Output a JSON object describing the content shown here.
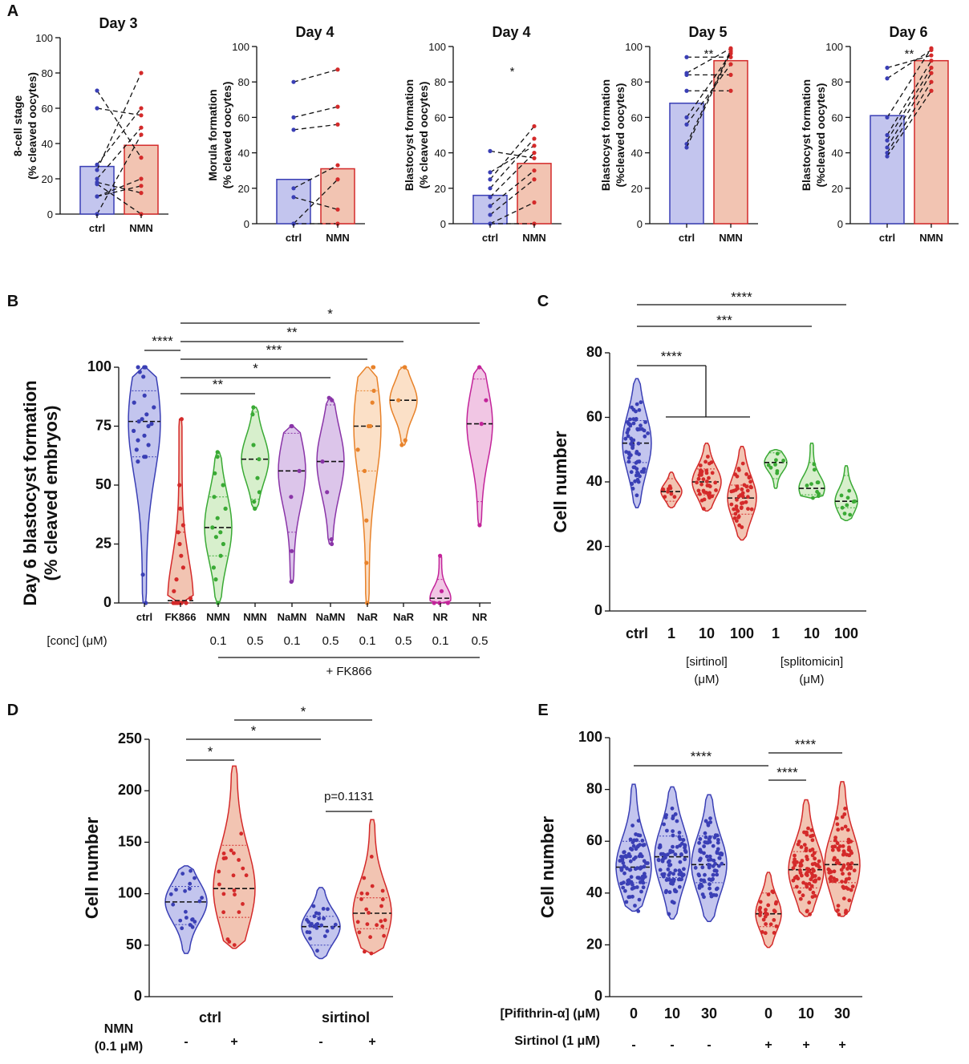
{
  "panel_labels": [
    "A",
    "B",
    "C",
    "D",
    "E"
  ],
  "colors": {
    "blue": "#3a3fb5",
    "blue_fill": "#c3c5ee",
    "red": "#d42a2a",
    "red_fill": "#f2c4b2",
    "green": "#3aaa35",
    "green_fill": "#d7efcc",
    "purple": "#8a35a8",
    "purple_fill": "#dcc5ea",
    "orange": "#e8822a",
    "orange_fill": "#fbe0c7",
    "magenta": "#c3249a",
    "magenta_fill": "#f1c6e4"
  },
  "chart_data": [
    {
      "id": "A1",
      "type": "bar",
      "title": "Day 3",
      "ylabel": "8-cell stage\n(% cleaved oocytes)",
      "categories": [
        "ctrl",
        "NMN"
      ],
      "values": [
        27,
        39
      ],
      "ylim": [
        0,
        100
      ],
      "yticks": [
        0,
        20,
        40,
        60,
        80,
        100
      ],
      "pairs": [
        [
          70,
          32
        ],
        [
          60,
          56
        ],
        [
          28,
          60
        ],
        [
          25,
          80
        ],
        [
          20,
          49
        ],
        [
          18,
          12
        ],
        [
          17,
          0
        ],
        [
          10,
          16
        ],
        [
          10,
          20
        ],
        [
          0,
          45
        ]
      ]
    },
    {
      "id": "A2",
      "type": "bar",
      "title": "Day 4",
      "ylabel": "Morula formation\n(% cleaved oocytes)",
      "categories": [
        "ctrl",
        "NMN"
      ],
      "values": [
        25,
        31
      ],
      "ylim": [
        0,
        100
      ],
      "yticks": [
        0,
        20,
        40,
        60,
        80,
        100
      ],
      "pairs": [
        [
          80,
          87
        ],
        [
          60,
          66
        ],
        [
          53,
          56
        ],
        [
          20,
          33
        ],
        [
          15,
          8
        ],
        [
          0,
          25
        ],
        [
          0,
          0
        ]
      ]
    },
    {
      "id": "A3",
      "type": "bar",
      "title": "Day 4",
      "ylabel": "Blastocyst formation\n(% cleaved oocytes)",
      "categories": [
        "ctrl",
        "NMN"
      ],
      "values": [
        16,
        34
      ],
      "ylim": [
        0,
        100
      ],
      "yticks": [
        0,
        20,
        40,
        60,
        80,
        100
      ],
      "annotations": [
        "*"
      ],
      "pairs": [
        [
          41,
          37
        ],
        [
          29,
          44
        ],
        [
          25,
          55
        ],
        [
          20,
          48
        ],
        [
          15,
          40
        ],
        [
          10,
          30
        ],
        [
          5,
          25
        ],
        [
          0,
          12
        ],
        [
          0,
          0
        ]
      ]
    },
    {
      "id": "A4",
      "type": "bar",
      "title": "Day 5",
      "ylabel": "Blastocyst formation\n(%cleaved oocytes)",
      "categories": [
        "ctrl",
        "NMN"
      ],
      "values": [
        68,
        92
      ],
      "ylim": [
        0,
        100
      ],
      "yticks": [
        0,
        20,
        40,
        60,
        80,
        100
      ],
      "annotations": [
        "**"
      ],
      "pairs": [
        [
          94,
          94
        ],
        [
          85,
          99
        ],
        [
          84,
          84
        ],
        [
          75,
          75
        ],
        [
          60,
          96
        ],
        [
          56,
          90
        ],
        [
          45,
          98
        ],
        [
          43,
          97
        ]
      ]
    },
    {
      "id": "A5",
      "type": "bar",
      "title": "Day 6",
      "ylabel": "Blastocyst formation\n(%cleaved oocytes)",
      "categories": [
        "ctrl",
        "NMN"
      ],
      "values": [
        61,
        92
      ],
      "ylim": [
        0,
        100
      ],
      "yticks": [
        0,
        20,
        40,
        60,
        80,
        100
      ],
      "annotations": [
        "**"
      ],
      "pairs": [
        [
          88,
          95
        ],
        [
          82,
          98
        ],
        [
          60,
          99
        ],
        [
          50,
          92
        ],
        [
          47,
          88
        ],
        [
          43,
          85
        ],
        [
          40,
          80
        ],
        [
          38,
          75
        ]
      ]
    },
    {
      "id": "B",
      "type": "violin",
      "ylabel": "Day 6 blastocyst formation\n(% cleaved embryos)",
      "ylim": [
        0,
        100
      ],
      "yticks": [
        0,
        25,
        50,
        75,
        100
      ],
      "categories": [
        "ctrl",
        "FK866",
        "NMN",
        "NMN",
        "NaMN",
        "NaMN",
        "NaR",
        "NaR",
        "NR",
        "NR"
      ],
      "conc_label": "[conc] (μM)",
      "concs": [
        "",
        "",
        "0.1",
        "0.5",
        "0.1",
        "0.5",
        "0.1",
        "0.5",
        "0.1",
        "0.5"
      ],
      "fk866_label": "+ FK866",
      "series": [
        {
          "name": "ctrl",
          "color": "blue",
          "min": 0,
          "max": 100,
          "median": 77,
          "q1": 62,
          "q3": 90,
          "points": [
            100,
            100,
            100,
            98,
            96,
            88,
            85,
            83,
            80,
            78,
            77,
            76,
            75,
            73,
            71,
            69,
            67,
            65,
            62,
            62,
            60,
            12,
            0
          ]
        },
        {
          "name": "FK866",
          "color": "red",
          "min": 0,
          "max": 78,
          "median": 1,
          "q1": 0,
          "q3": 30,
          "points": [
            78,
            50,
            40,
            33,
            30,
            25,
            20,
            15,
            10,
            5,
            2,
            0,
            0,
            0,
            0,
            0,
            0
          ]
        },
        {
          "name": "NMN 0.1",
          "color": "green",
          "min": 0,
          "max": 64,
          "median": 32,
          "q1": 20,
          "q3": 45,
          "points": [
            64,
            62,
            55,
            50,
            45,
            40,
            36,
            32,
            30,
            28,
            25,
            20,
            15,
            10,
            0
          ]
        },
        {
          "name": "NMN 0.5",
          "color": "green",
          "min": 40,
          "max": 83,
          "median": 61,
          "q1": 44,
          "q3": 81,
          "points": [
            83,
            80,
            67,
            61,
            53,
            47,
            43,
            40
          ]
        },
        {
          "name": "NaMN 0.1",
          "color": "purple",
          "min": 9,
          "max": 75,
          "median": 56,
          "q1": 30,
          "q3": 72,
          "points": [
            75,
            75,
            56,
            45,
            22,
            9
          ]
        },
        {
          "name": "NaMN 0.5",
          "color": "purple",
          "min": 25,
          "max": 87,
          "median": 60,
          "q1": 27,
          "q3": 84,
          "points": [
            87,
            86,
            60,
            47,
            27,
            25
          ]
        },
        {
          "name": "NaR 0.1",
          "color": "orange",
          "min": 0,
          "max": 100,
          "median": 75,
          "q1": 56,
          "q3": 90,
          "points": [
            100,
            100,
            90,
            85,
            75,
            75,
            65,
            56,
            35,
            17,
            0
          ]
        },
        {
          "name": "NaR 0.5",
          "color": "orange",
          "min": 67,
          "max": 100,
          "median": 86,
          "q1": 68,
          "q3": 100,
          "points": [
            100,
            100,
            86,
            69,
            67
          ]
        },
        {
          "name": "NR 0.1",
          "color": "magenta",
          "min": 0,
          "max": 20,
          "median": 2,
          "q1": 0,
          "q3": 10,
          "points": [
            20,
            5,
            0,
            0,
            0
          ]
        },
        {
          "name": "NR 0.5",
          "color": "magenta",
          "min": 33,
          "max": 100,
          "median": 76,
          "q1": 43,
          "q3": 95,
          "points": [
            100,
            86,
            76,
            33
          ]
        }
      ],
      "annotations": [
        {
          "from": 0,
          "to": 1,
          "label": "****"
        },
        {
          "from": 1,
          "to": 3,
          "label": "**"
        },
        {
          "from": 1,
          "to": 5,
          "label": "*"
        },
        {
          "from": 1,
          "to": 6,
          "label": "***"
        },
        {
          "from": 1,
          "to": 7,
          "label": "**"
        },
        {
          "from": 1,
          "to": 9,
          "label": "*"
        }
      ]
    },
    {
      "id": "C",
      "type": "violin",
      "ylabel": "Cell number",
      "ylim": [
        0,
        80
      ],
      "yticks": [
        0,
        20,
        40,
        60,
        80
      ],
      "categories": [
        "ctrl",
        "1",
        "10",
        "100",
        "1",
        "10",
        "100"
      ],
      "group_labels": [
        "[sirtinol]\n(μM)",
        "[splitomicin]\n(μM)"
      ],
      "series": [
        {
          "name": "ctrl",
          "color": "blue",
          "min": 32,
          "max": 72,
          "median": 52,
          "q1": 46,
          "q3": 59
        },
        {
          "name": "sirtinol 1",
          "color": "red",
          "min": 32,
          "max": 43,
          "median": 37,
          "q1": 34,
          "q3": 41
        },
        {
          "name": "sirtinol 10",
          "color": "red",
          "min": 31,
          "max": 52,
          "median": 40,
          "q1": 36,
          "q3": 44
        },
        {
          "name": "sirtinol 100",
          "color": "red",
          "min": 22,
          "max": 51,
          "median": 35,
          "q1": 30,
          "q3": 39
        },
        {
          "name": "splitomicin 1",
          "color": "green",
          "min": 38,
          "max": 50,
          "median": 46,
          "q1": 41,
          "q3": 49
        },
        {
          "name": "splitomicin 10",
          "color": "green",
          "min": 35,
          "max": 52,
          "median": 38,
          "q1": 36,
          "q3": 46
        },
        {
          "name": "splitomicin 100",
          "color": "green",
          "min": 28,
          "max": 45,
          "median": 34,
          "q1": 32,
          "q3": 42
        }
      ],
      "annotations": [
        "****",
        "***",
        "****"
      ]
    },
    {
      "id": "D",
      "type": "violin",
      "ylabel": "Cell number",
      "ylim": [
        0,
        250
      ],
      "yticks": [
        0,
        50,
        100,
        150,
        200,
        250
      ],
      "group_labels": [
        "ctrl",
        "sirtinol"
      ],
      "nmn_label": "NMN\n(0.1 μM)",
      "nmn_signs": [
        "-",
        "+",
        "-",
        "+"
      ],
      "series": [
        {
          "name": "ctrl -",
          "color": "blue",
          "min": 42,
          "max": 127,
          "median": 92,
          "q1": 70,
          "q3": 107
        },
        {
          "name": "ctrl +",
          "color": "red",
          "min": 47,
          "max": 224,
          "median": 105,
          "q1": 77,
          "q3": 147
        },
        {
          "name": "sirtinol -",
          "color": "blue",
          "min": 37,
          "max": 106,
          "median": 68,
          "q1": 50,
          "q3": 78
        },
        {
          "name": "sirtinol +",
          "color": "red",
          "min": 42,
          "max": 172,
          "median": 81,
          "q1": 66,
          "q3": 96
        }
      ],
      "annotations": [
        "*",
        "*",
        "*",
        "p=0.1131"
      ]
    },
    {
      "id": "E",
      "type": "violin",
      "ylabel": "Cell number",
      "ylim": [
        0,
        100
      ],
      "yticks": [
        0,
        20,
        40,
        60,
        80,
        100
      ],
      "row_labels": [
        "[Pifithrin-α] (μM)",
        "Sirtinol (1 μM)"
      ],
      "pifithrin": [
        "0",
        "10",
        "30",
        "0",
        "10",
        "30"
      ],
      "sirtinol_signs": [
        "-",
        "-",
        "-",
        "+",
        "+",
        "+"
      ],
      "series": [
        {
          "name": "0 -",
          "color": "blue",
          "min": 33,
          "max": 82,
          "median": 50,
          "q1": 44,
          "q3": 60
        },
        {
          "name": "10 -",
          "color": "blue",
          "min": 30,
          "max": 81,
          "median": 54,
          "q1": 46,
          "q3": 62
        },
        {
          "name": "30 -",
          "color": "blue",
          "min": 29,
          "max": 78,
          "median": 51,
          "q1": 44,
          "q3": 62
        },
        {
          "name": "0 +",
          "color": "red",
          "min": 19,
          "max": 48,
          "median": 32,
          "q1": 27,
          "q3": 40
        },
        {
          "name": "10 +",
          "color": "red",
          "min": 31,
          "max": 76,
          "median": 49,
          "q1": 42,
          "q3": 56
        },
        {
          "name": "30 +",
          "color": "red",
          "min": 31,
          "max": 83,
          "median": 51,
          "q1": 44,
          "q3": 60
        }
      ],
      "annotations": [
        "****",
        "****",
        "****"
      ]
    }
  ]
}
